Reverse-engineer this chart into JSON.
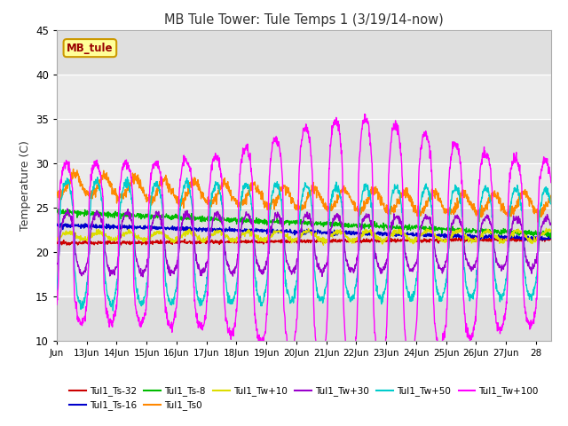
{
  "title": "MB Tule Tower: Tule Temps 1 (3/19/14-now)",
  "ylabel": "Temperature (C)",
  "xlabel_ticks": [
    "Jun",
    "13Jun",
    "14Jun",
    "15Jun",
    "16Jun",
    "17Jun",
    "18Jun",
    "19Jun",
    "20Jun",
    "21Jun",
    "22Jun",
    "23Jun",
    "24Jun",
    "25Jun",
    "26Jun",
    "27Jun",
    "28"
  ],
  "ylim": [
    10,
    45
  ],
  "yticks": [
    10,
    15,
    20,
    25,
    30,
    35,
    40,
    45
  ],
  "series": {
    "Tul1_Ts-32": {
      "color": "#cc0000"
    },
    "Tul1_Ts-16": {
      "color": "#0000cc"
    },
    "Tul1_Ts-8": {
      "color": "#00bb00"
    },
    "Tul1_Ts0": {
      "color": "#ff8800"
    },
    "Tul1_Tw+10": {
      "color": "#dddd00"
    },
    "Tul1_Tw+30": {
      "color": "#9900cc"
    },
    "Tul1_Tw+50": {
      "color": "#00cccc"
    },
    "Tul1_Tw+100": {
      "color": "#ff00ff"
    }
  },
  "legend_box_color": "#ffff99",
  "legend_box_border": "#cc9900",
  "legend_label": "MB_tule",
  "legend_label_color": "#990000",
  "bg_stripe_color": "#d8d8d8",
  "plot_bg_color": "#ebebeb"
}
